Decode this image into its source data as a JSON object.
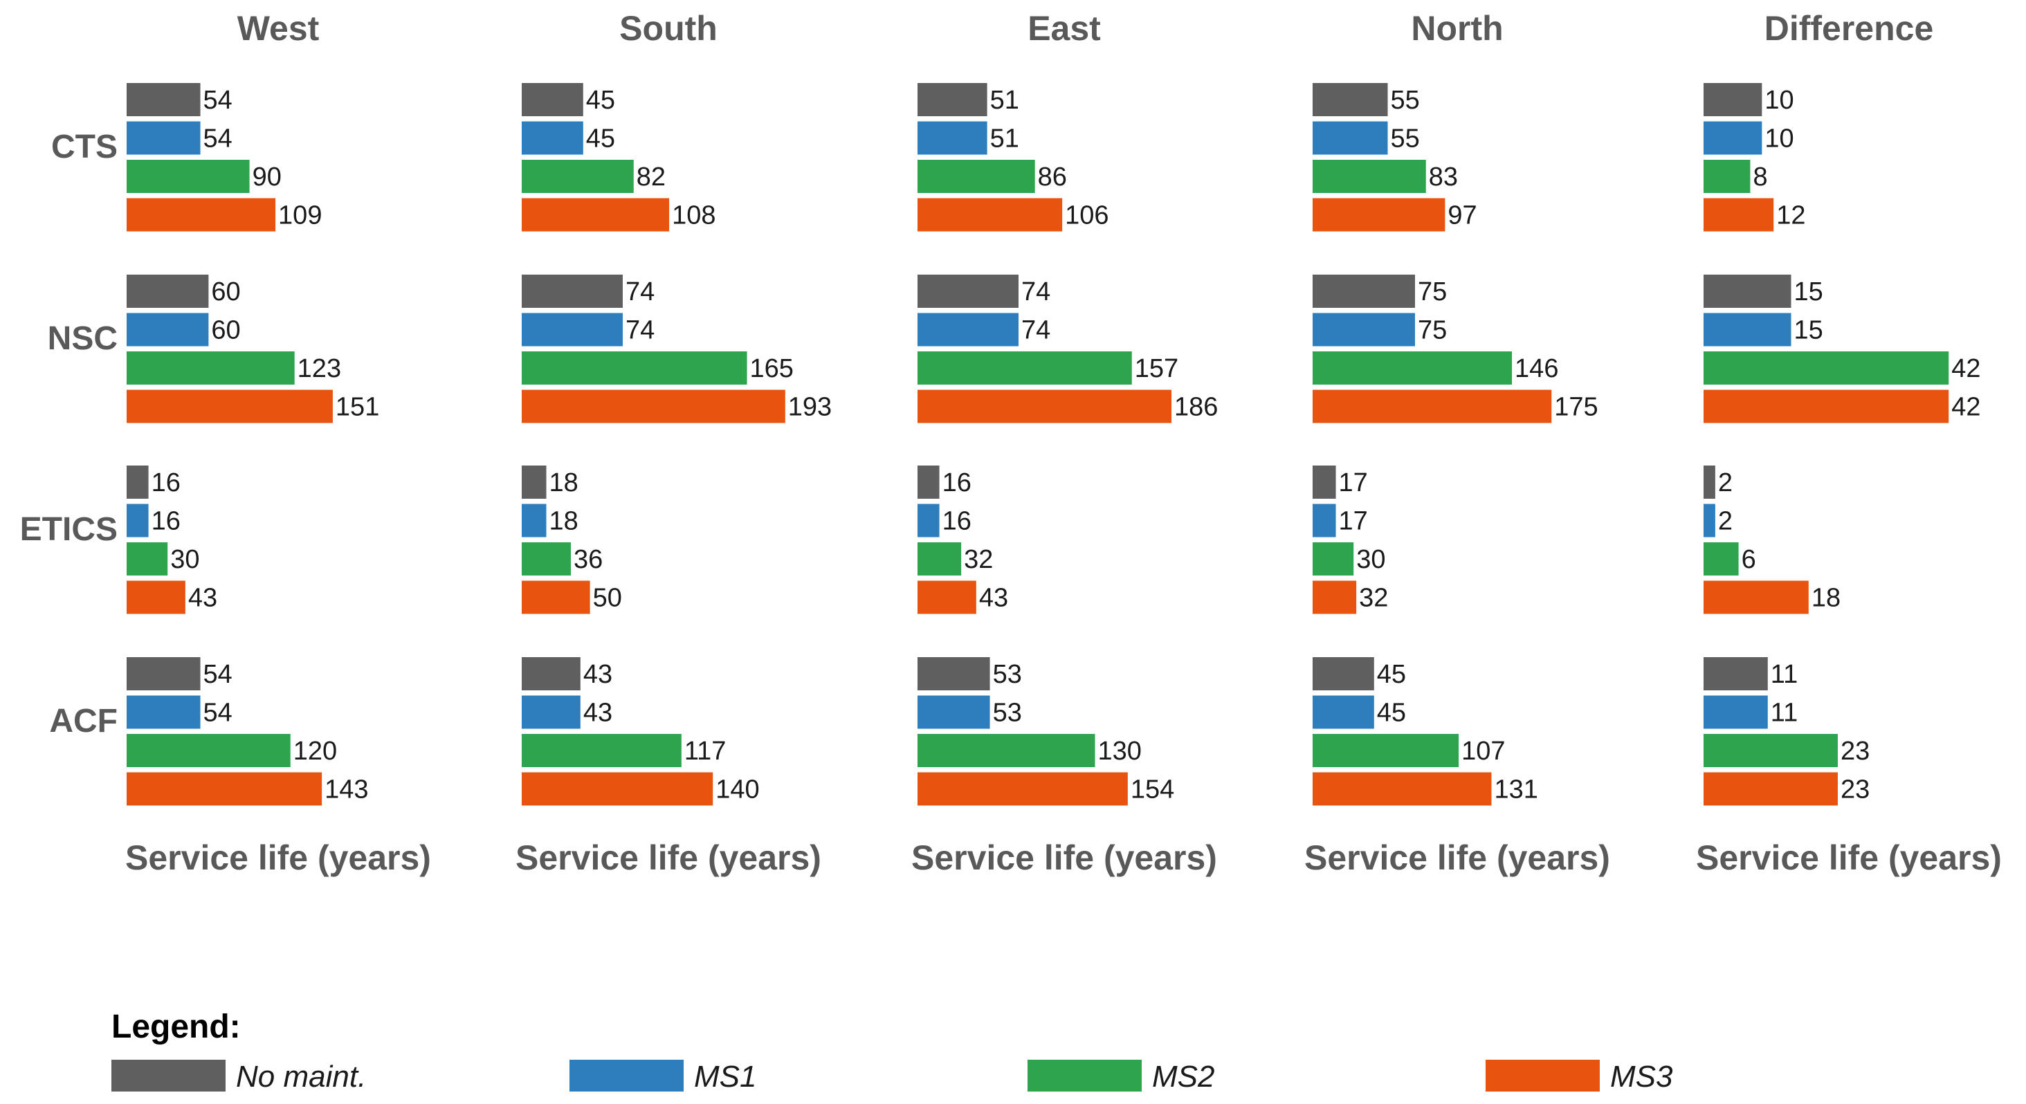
{
  "chart_data": {
    "type": "bar",
    "orientation": "horizontal",
    "panels": [
      {
        "title": "West",
        "xlabel": "Service life (years)",
        "groups": [
          {
            "name": "CTS",
            "values": [
              54,
              54,
              90,
              109
            ]
          },
          {
            "name": "NSC",
            "values": [
              60,
              60,
              123,
              151
            ]
          },
          {
            "name": "ETICS",
            "values": [
              16,
              16,
              30,
              43
            ]
          },
          {
            "name": "ACF",
            "values": [
              54,
              54,
              120,
              143
            ]
          }
        ]
      },
      {
        "title": "South",
        "xlabel": "Service life (years)",
        "groups": [
          {
            "name": "CTS",
            "values": [
              45,
              45,
              82,
              108
            ]
          },
          {
            "name": "NSC",
            "values": [
              74,
              74,
              165,
              193
            ]
          },
          {
            "name": "ETICS",
            "values": [
              18,
              18,
              36,
              50
            ]
          },
          {
            "name": "ACF",
            "values": [
              43,
              43,
              117,
              140
            ]
          }
        ]
      },
      {
        "title": "East",
        "xlabel": "Service life (years)",
        "groups": [
          {
            "name": "CTS",
            "values": [
              51,
              51,
              86,
              106
            ]
          },
          {
            "name": "NSC",
            "values": [
              74,
              74,
              157,
              186
            ]
          },
          {
            "name": "ETICS",
            "values": [
              16,
              16,
              32,
              43
            ]
          },
          {
            "name": "ACF",
            "values": [
              53,
              53,
              130,
              154
            ]
          }
        ]
      },
      {
        "title": "North",
        "xlabel": "Service life (years)",
        "groups": [
          {
            "name": "CTS",
            "values": [
              55,
              55,
              83,
              97
            ]
          },
          {
            "name": "NSC",
            "values": [
              75,
              75,
              146,
              175
            ]
          },
          {
            "name": "ETICS",
            "values": [
              17,
              17,
              30,
              32
            ]
          },
          {
            "name": "ACF",
            "values": [
              45,
              45,
              107,
              131
            ]
          }
        ]
      },
      {
        "title": "Difference",
        "xlabel": "Service life (years)",
        "scale_max": 40,
        "groups": [
          {
            "name": "CTS",
            "values": [
              10,
              10,
              8,
              12
            ]
          },
          {
            "name": "NSC",
            "values": [
              15,
              15,
              42,
              42
            ]
          },
          {
            "name": "ETICS",
            "values": [
              2,
              2,
              6,
              18
            ]
          },
          {
            "name": "ACF",
            "values": [
              11,
              11,
              23,
              23
            ]
          }
        ]
      }
    ],
    "series": [
      {
        "name": "No maint.",
        "color": "#5f5f5f"
      },
      {
        "name": "MS1",
        "color": "#2e7ebd"
      },
      {
        "name": "MS2",
        "color": "#2ea44f"
      },
      {
        "name": "MS3",
        "color": "#e8540f"
      }
    ],
    "scale_max": 190,
    "legend_title": "Legend:"
  }
}
